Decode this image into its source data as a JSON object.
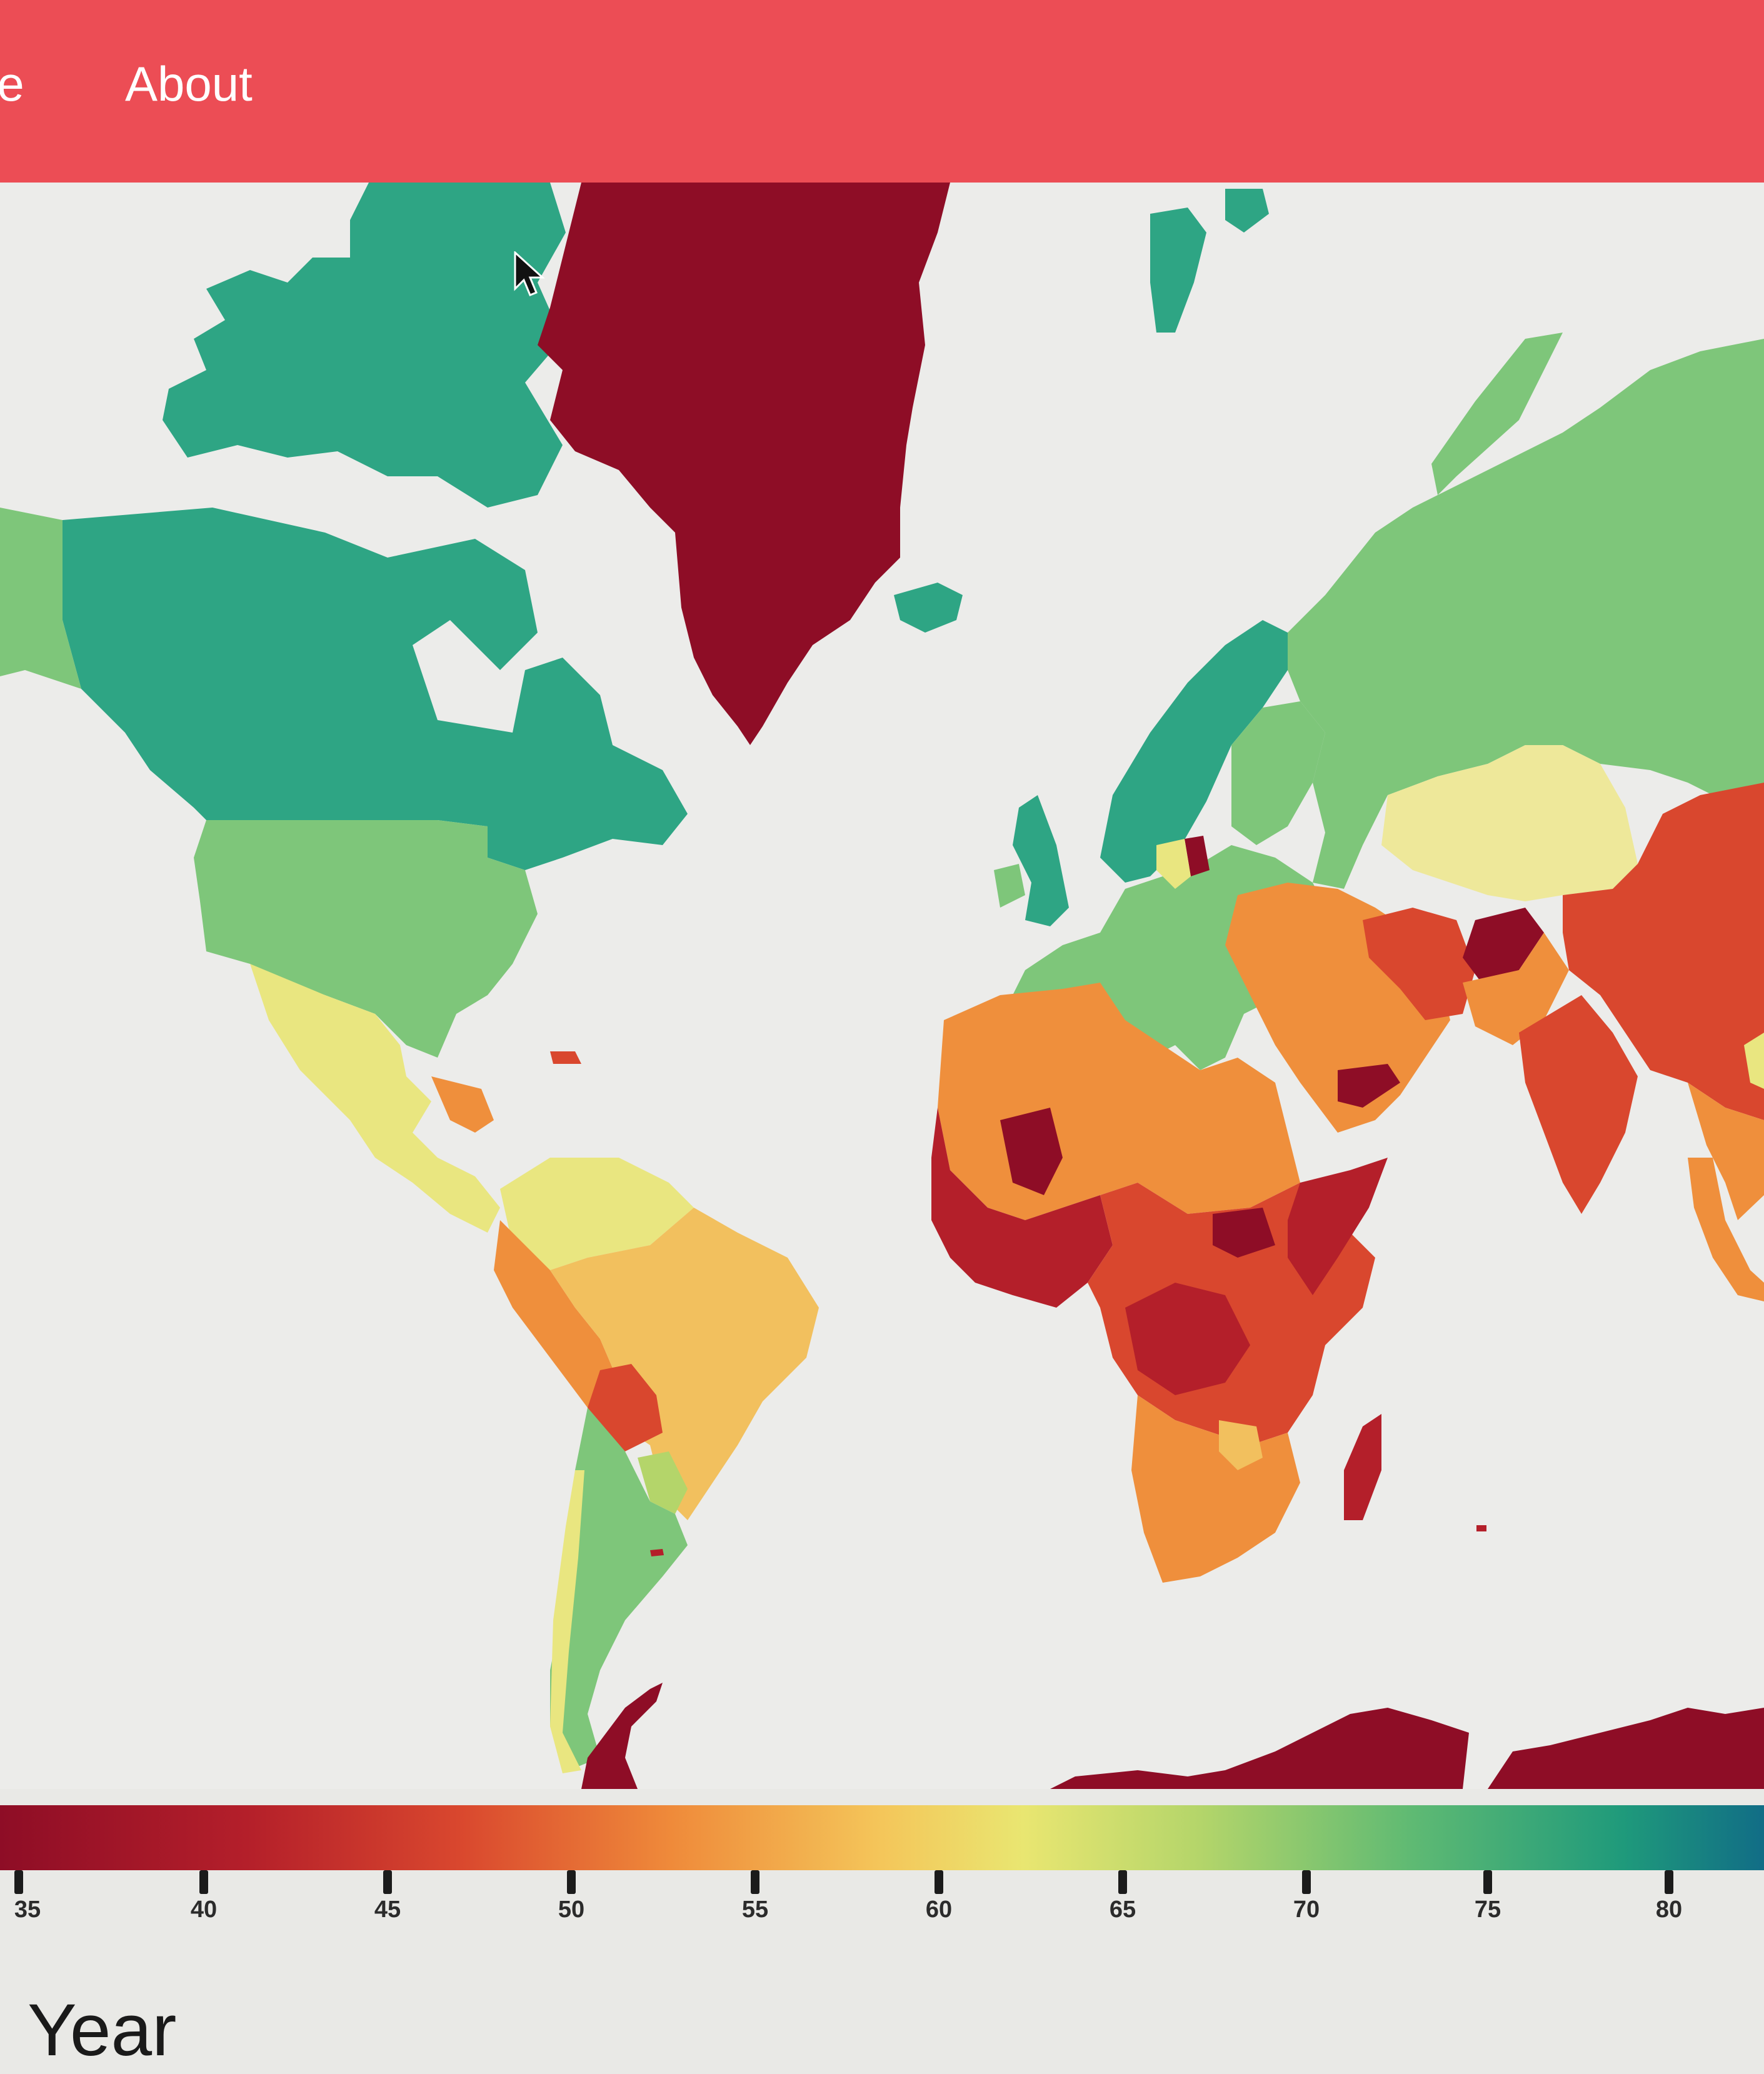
{
  "nav": {
    "home_label": "ne",
    "about_label": "About"
  },
  "legend": {
    "ticks": [
      "35",
      "40",
      "45",
      "50",
      "55",
      "60",
      "65",
      "70",
      "75",
      "80"
    ],
    "colors": [
      "#8e0d26",
      "#d9472e",
      "#ef8a3a",
      "#f4c65a",
      "#e9e671",
      "#5fba73",
      "#1f9a7b",
      "#116d86"
    ]
  },
  "map": {
    "colors": {
      "ocean": "#ececea",
      "high": "#2ea584",
      "mid_high": "#7ec67a",
      "mid": "#e9e680",
      "mid_low": "#ef8f3c",
      "low": "#d9472e",
      "lowest": "#8e0d26"
    }
  },
  "footer": {
    "year_label": "Year"
  },
  "icons": {
    "cursor": "cursor-arrow-icon"
  }
}
